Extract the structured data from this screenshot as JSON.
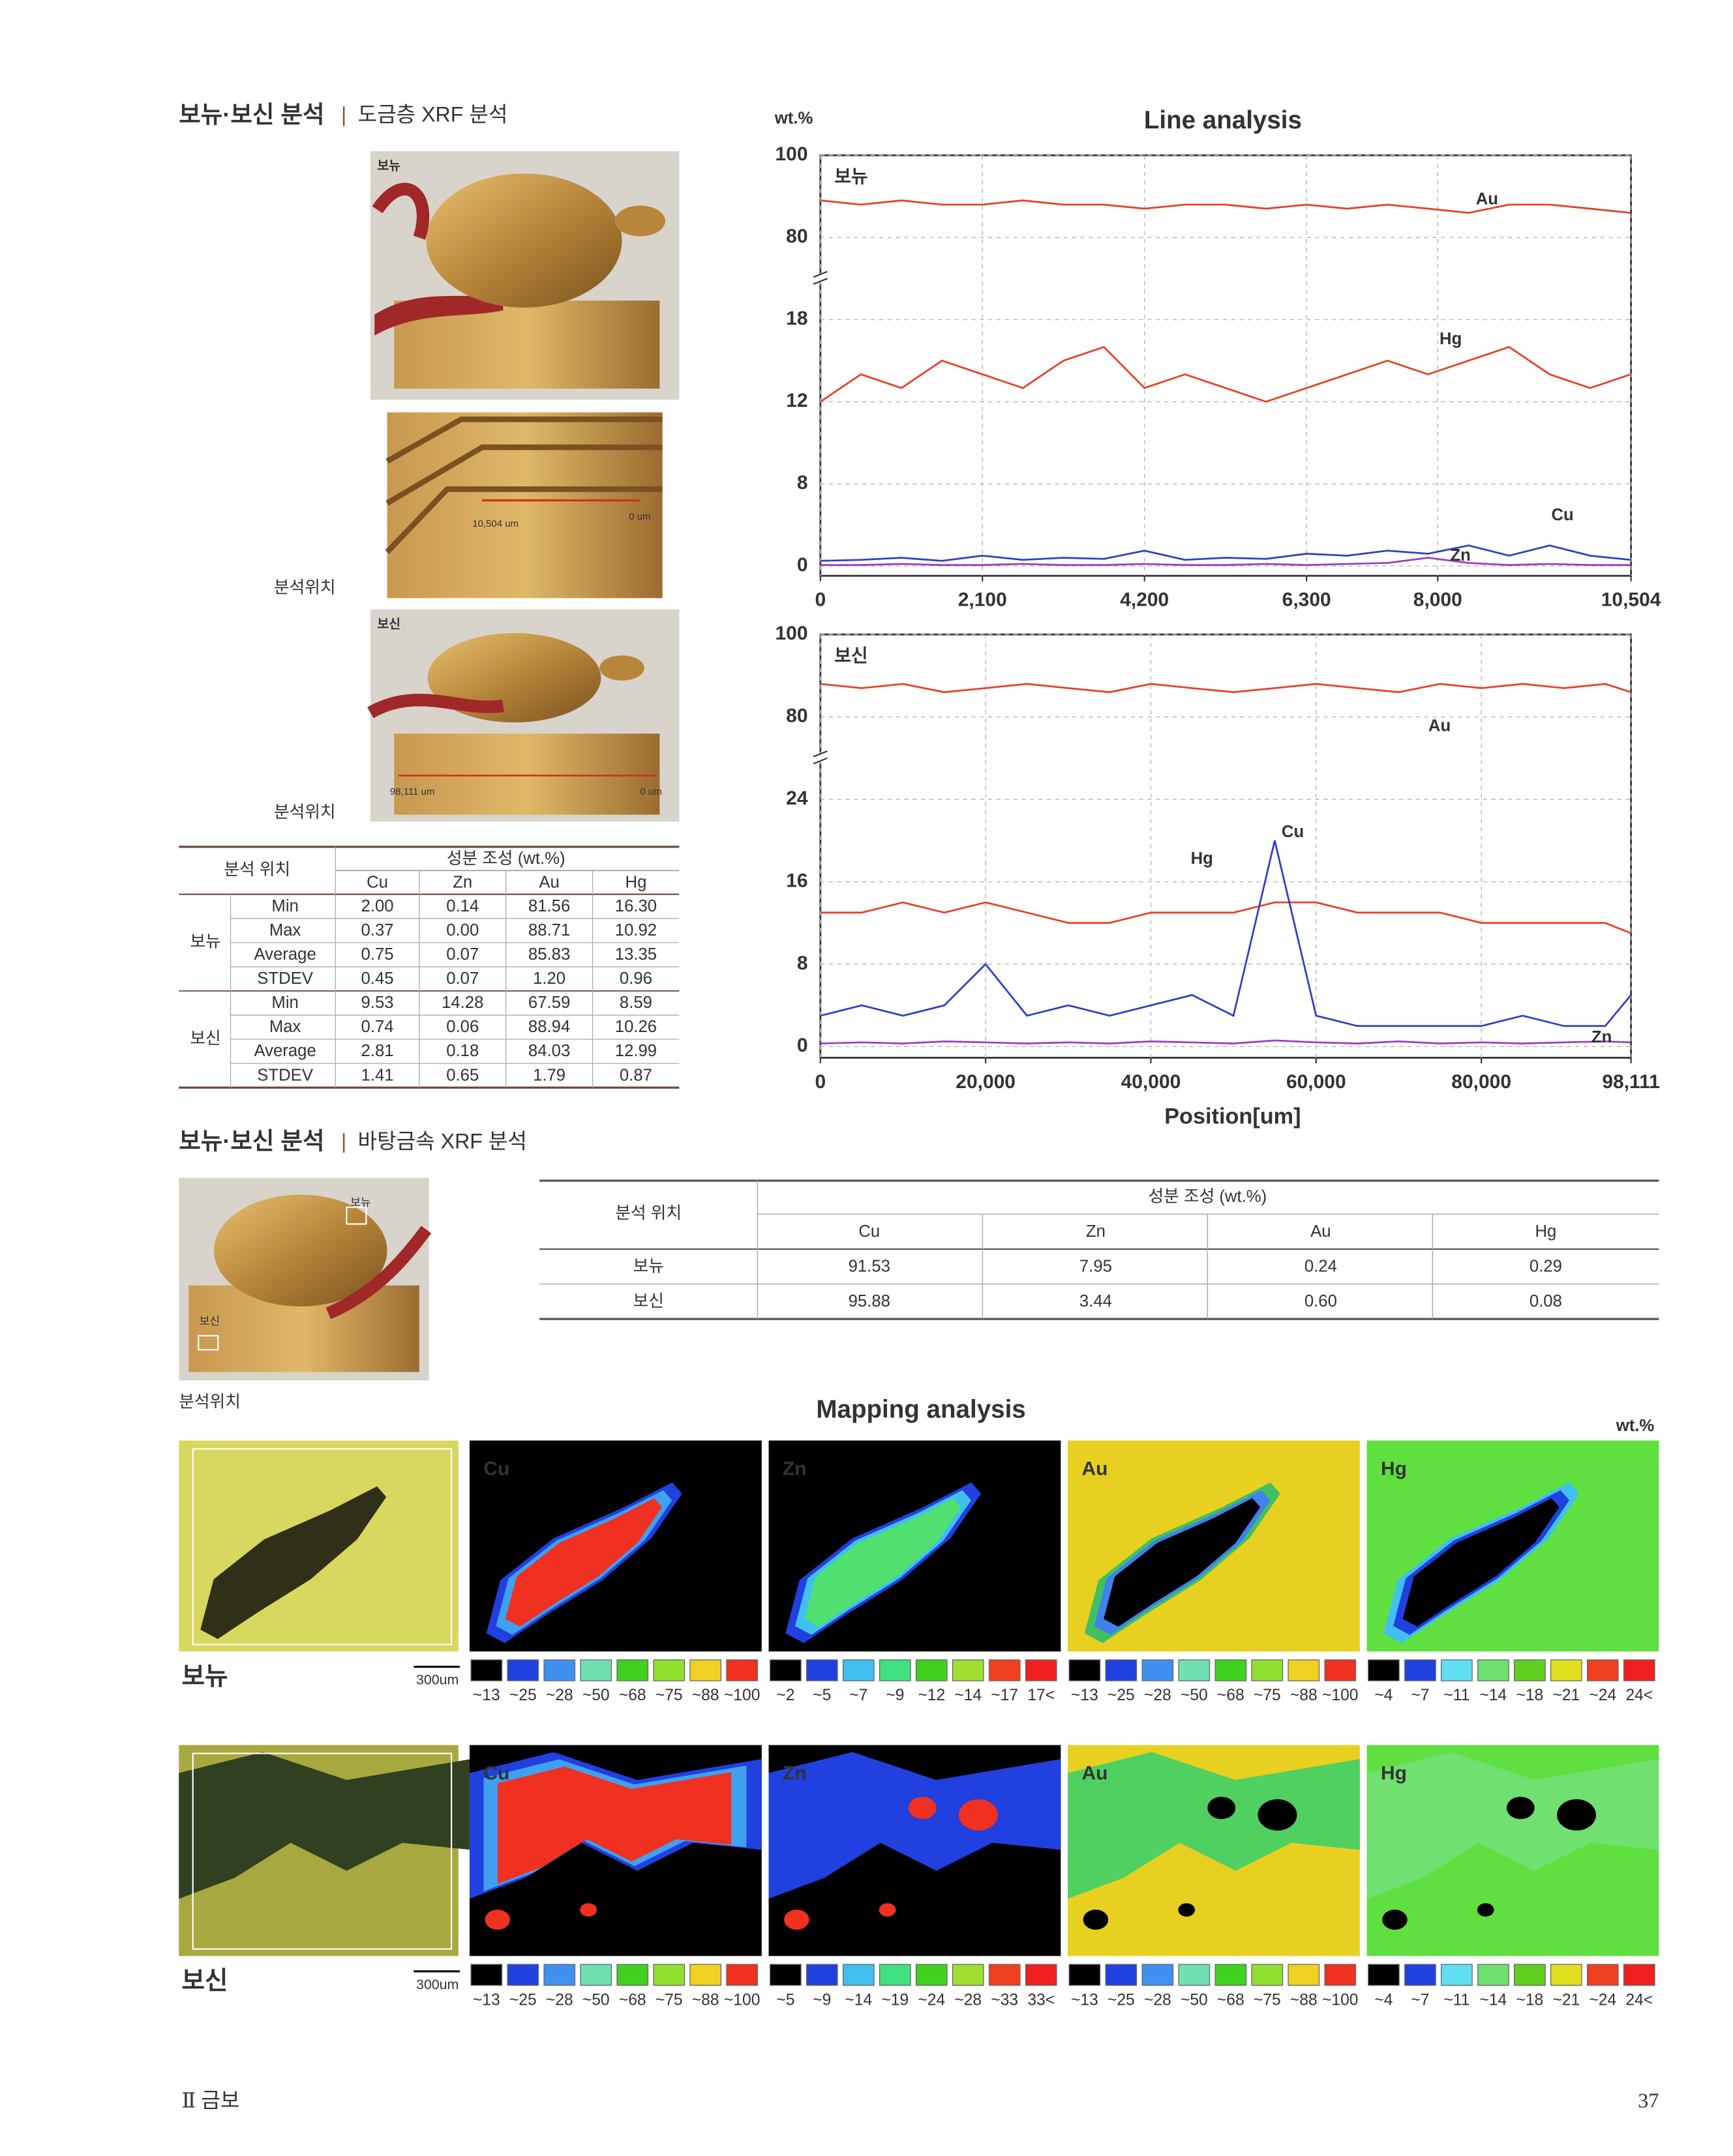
{
  "section1": {
    "title": "보뉴·보신 분석",
    "subtitle": "도금층 XRF 분석",
    "photos": [
      {
        "label": "보뉴"
      },
      {
        "scale_start": "10,504 um",
        "scale_end": "0 um"
      },
      {
        "label": "보신",
        "scale_start": "98,111 um",
        "scale_end": "0 um"
      }
    ],
    "location_labels": [
      "분석위치",
      "분석위치"
    ],
    "table": {
      "location_header": "분석 위치",
      "composition_header": "성분 조성 (wt.%)",
      "columns": [
        "Cu",
        "Zn",
        "Au",
        "Hg"
      ],
      "groups": [
        {
          "name": "보뉴",
          "rows": [
            {
              "stat": "Min",
              "values": [
                "2.00",
                "0.14",
                "81.56",
                "16.30"
              ]
            },
            {
              "stat": "Max",
              "values": [
                "0.37",
                "0.00",
                "88.71",
                "10.92"
              ]
            },
            {
              "stat": "Average",
              "values": [
                "0.75",
                "0.07",
                "85.83",
                "13.35"
              ]
            },
            {
              "stat": "STDEV",
              "values": [
                "0.45",
                "0.07",
                "1.20",
                "0.96"
              ]
            }
          ]
        },
        {
          "name": "보신",
          "rows": [
            {
              "stat": "Min",
              "values": [
                "9.53",
                "14.28",
                "67.59",
                "8.59"
              ]
            },
            {
              "stat": "Max",
              "values": [
                "0.74",
                "0.06",
                "88.94",
                "10.26"
              ]
            },
            {
              "stat": "Average",
              "values": [
                "2.81",
                "0.18",
                "84.03",
                "12.99"
              ]
            },
            {
              "stat": "STDEV",
              "values": [
                "1.41",
                "0.65",
                "1.79",
                "0.87"
              ]
            }
          ]
        }
      ]
    }
  },
  "chart_data": [
    {
      "type": "line",
      "title": "Line analysis",
      "y_label": "wt.%",
      "label": "보뉴",
      "x": [
        0,
        525,
        1050,
        1575,
        2100,
        2625,
        3150,
        3675,
        4200,
        4725,
        5250,
        5775,
        6300,
        6825,
        7350,
        7875,
        8400,
        8925,
        9450,
        9975,
        10500
      ],
      "xlim": [
        0,
        10504
      ],
      "xticks": [
        0,
        {
          "value": 2100,
          "label": "2,100"
        },
        {
          "value": 4200,
          "label": "4,200"
        },
        {
          "value": 6300,
          "label": "6,300"
        },
        {
          "value": 8000,
          "label": "8,000"
        },
        {
          "value": 10504,
          "label": "10,504"
        }
      ],
      "ylim": [
        0,
        100
      ],
      "yticks": [
        0,
        8,
        12,
        18,
        80,
        100
      ],
      "axis_break": true,
      "grid": true,
      "series": [
        {
          "name": "Au",
          "color": "#e8402a",
          "values": [
            89,
            88,
            89,
            88,
            88,
            89,
            88,
            88,
            87,
            88,
            88,
            87,
            88,
            87,
            88,
            87,
            86,
            88,
            88,
            87,
            86
          ]
        },
        {
          "name": "Hg",
          "color": "#e8402a",
          "values": [
            12,
            14,
            13,
            15,
            14,
            13,
            15,
            16,
            13,
            14,
            13,
            12,
            13,
            14,
            15,
            14,
            15,
            16,
            14,
            13,
            14
          ]
        },
        {
          "name": "Cu",
          "color": "#3040c0",
          "values": [
            0.5,
            0.6,
            0.8,
            0.5,
            1,
            0.6,
            0.8,
            0.7,
            1.5,
            0.6,
            0.8,
            0.7,
            1.2,
            1,
            1.5,
            1.2,
            2,
            1,
            2,
            1,
            0.6
          ]
        },
        {
          "name": "Zn",
          "color": "#9a40c0",
          "values": [
            0.1,
            0.1,
            0.2,
            0.1,
            0.1,
            0.2,
            0.1,
            0.1,
            0.2,
            0.1,
            0.1,
            0.2,
            0.1,
            0.2,
            0.3,
            0.8,
            0.3,
            0.1,
            0.2,
            0.1,
            0.1
          ]
        }
      ]
    },
    {
      "type": "line",
      "label": "보신",
      "x_label": "Position[um]",
      "x": [
        0,
        5000,
        10000,
        15000,
        20000,
        25000,
        30000,
        35000,
        40000,
        45000,
        50000,
        55000,
        60000,
        65000,
        70000,
        75000,
        80000,
        85000,
        90000,
        95000,
        98111
      ],
      "xlim": [
        0,
        98111
      ],
      "xticks": [
        0,
        {
          "value": 20000,
          "label": "20,000"
        },
        {
          "value": 40000,
          "label": "40,000"
        },
        {
          "value": 60000,
          "label": "60,000"
        },
        {
          "value": 80000,
          "label": "80,000"
        },
        {
          "value": 98111,
          "label": "98,111"
        }
      ],
      "ylim": [
        0,
        100
      ],
      "yticks": [
        0,
        8,
        16,
        24,
        80,
        100
      ],
      "axis_break": true,
      "grid": true,
      "series": [
        {
          "name": "Au",
          "color": "#e8402a",
          "values": [
            88,
            87,
            88,
            86,
            87,
            88,
            87,
            86,
            88,
            87,
            86,
            87,
            88,
            87,
            86,
            88,
            87,
            88,
            87,
            88,
            86
          ]
        },
        {
          "name": "Hg",
          "color": "#e8402a",
          "values": [
            13,
            13,
            14,
            13,
            14,
            13,
            12,
            12,
            13,
            13,
            13,
            14,
            14,
            13,
            13,
            13,
            12,
            12,
            12,
            12,
            11
          ]
        },
        {
          "name": "Cu",
          "color": "#3040c0",
          "values": [
            3,
            4,
            3,
            4,
            8,
            3,
            4,
            3,
            4,
            5,
            3,
            20,
            3,
            2,
            2,
            2,
            2,
            3,
            2,
            2,
            5
          ]
        },
        {
          "name": "Zn",
          "color": "#9a40c0",
          "values": [
            0.3,
            0.4,
            0.3,
            0.5,
            0.4,
            0.3,
            0.4,
            0.3,
            0.5,
            0.4,
            0.3,
            0.6,
            0.4,
            0.3,
            0.5,
            0.3,
            0.4,
            0.3,
            0.4,
            0.5,
            0.4
          ]
        }
      ]
    }
  ],
  "section2": {
    "title": "보뉴·보신 분석",
    "subtitle": "바탕금속 XRF 분석",
    "photo_labels": [
      "보뉴",
      "보신"
    ],
    "location_label": "분석위치",
    "table": {
      "location_header": "분석 위치",
      "composition_header": "성분 조성 (wt.%)",
      "columns": [
        "Cu",
        "Zn",
        "Au",
        "Hg"
      ],
      "rows": [
        {
          "name": "보뉴",
          "values": [
            "91.53",
            "7.95",
            "0.24",
            "0.29"
          ]
        },
        {
          "name": "보신",
          "values": [
            "95.88",
            "3.44",
            "0.60",
            "0.08"
          ]
        }
      ]
    }
  },
  "mapping": {
    "title": "Mapping analysis",
    "unit": "wt.%",
    "rows": [
      {
        "label": "보뉴",
        "scale": "300um",
        "panels": [
          {
            "element": "Cu",
            "legend": [
              "~13",
              "~25",
              "~28",
              "~50",
              "~68",
              "~75",
              "~88",
              "~100"
            ],
            "colors": [
              "#000000",
              "#2040e0",
              "#4090f0",
              "#70e0b0",
              "#40d020",
              "#90e030",
              "#f0d020",
              "#f03020"
            ]
          },
          {
            "element": "Zn",
            "legend": [
              "~2",
              "~5",
              "~7",
              "~9",
              "~12",
              "~14",
              "~17",
              "17<"
            ],
            "colors": [
              "#000000",
              "#2040e0",
              "#40c0f0",
              "#40e080",
              "#40d020",
              "#a0e030",
              "#f04020",
              "#f02020"
            ]
          },
          {
            "element": "Au",
            "legend": [
              "~13",
              "~25",
              "~28",
              "~50",
              "~68",
              "~75",
              "~88",
              "~100"
            ],
            "colors": [
              "#000000",
              "#2040e0",
              "#4090f0",
              "#70e0b0",
              "#40d020",
              "#90e030",
              "#f0d020",
              "#f03020"
            ]
          },
          {
            "element": "Hg",
            "legend": [
              "~4",
              "~7",
              "~11",
              "~14",
              "~18",
              "~21",
              "~24",
              "24<"
            ],
            "colors": [
              "#000000",
              "#2040e0",
              "#60e0f0",
              "#70e070",
              "#60d020",
              "#e0e020",
              "#f04020",
              "#f02020"
            ]
          }
        ]
      },
      {
        "label": "보신",
        "scale": "300um",
        "panels": [
          {
            "element": "Cu",
            "legend": [
              "~13",
              "~25",
              "~28",
              "~50",
              "~68",
              "~75",
              "~88",
              "~100"
            ],
            "colors": [
              "#000000",
              "#2040e0",
              "#4090f0",
              "#70e0b0",
              "#40d020",
              "#90e030",
              "#f0d020",
              "#f03020"
            ]
          },
          {
            "element": "Zn",
            "legend": [
              "~5",
              "~9",
              "~14",
              "~19",
              "~24",
              "~28",
              "~33",
              "33<"
            ],
            "colors": [
              "#000000",
              "#2040e0",
              "#40c0f0",
              "#40e080",
              "#40d020",
              "#a0e030",
              "#f04020",
              "#f02020"
            ]
          },
          {
            "element": "Au",
            "legend": [
              "~13",
              "~25",
              "~28",
              "~50",
              "~68",
              "~75",
              "~88",
              "~100"
            ],
            "colors": [
              "#000000",
              "#2040e0",
              "#4090f0",
              "#70e0b0",
              "#40d020",
              "#90e030",
              "#f0d020",
              "#f03020"
            ]
          },
          {
            "element": "Hg",
            "legend": [
              "~4",
              "~7",
              "~11",
              "~14",
              "~18",
              "~21",
              "~24",
              "24<"
            ],
            "colors": [
              "#000000",
              "#2040e0",
              "#60e0f0",
              "#70e070",
              "#60d020",
              "#e0e020",
              "#f04020",
              "#f02020"
            ]
          }
        ]
      }
    ]
  },
  "footer": {
    "chapter": "Ⅱ 금보",
    "page": "37"
  }
}
